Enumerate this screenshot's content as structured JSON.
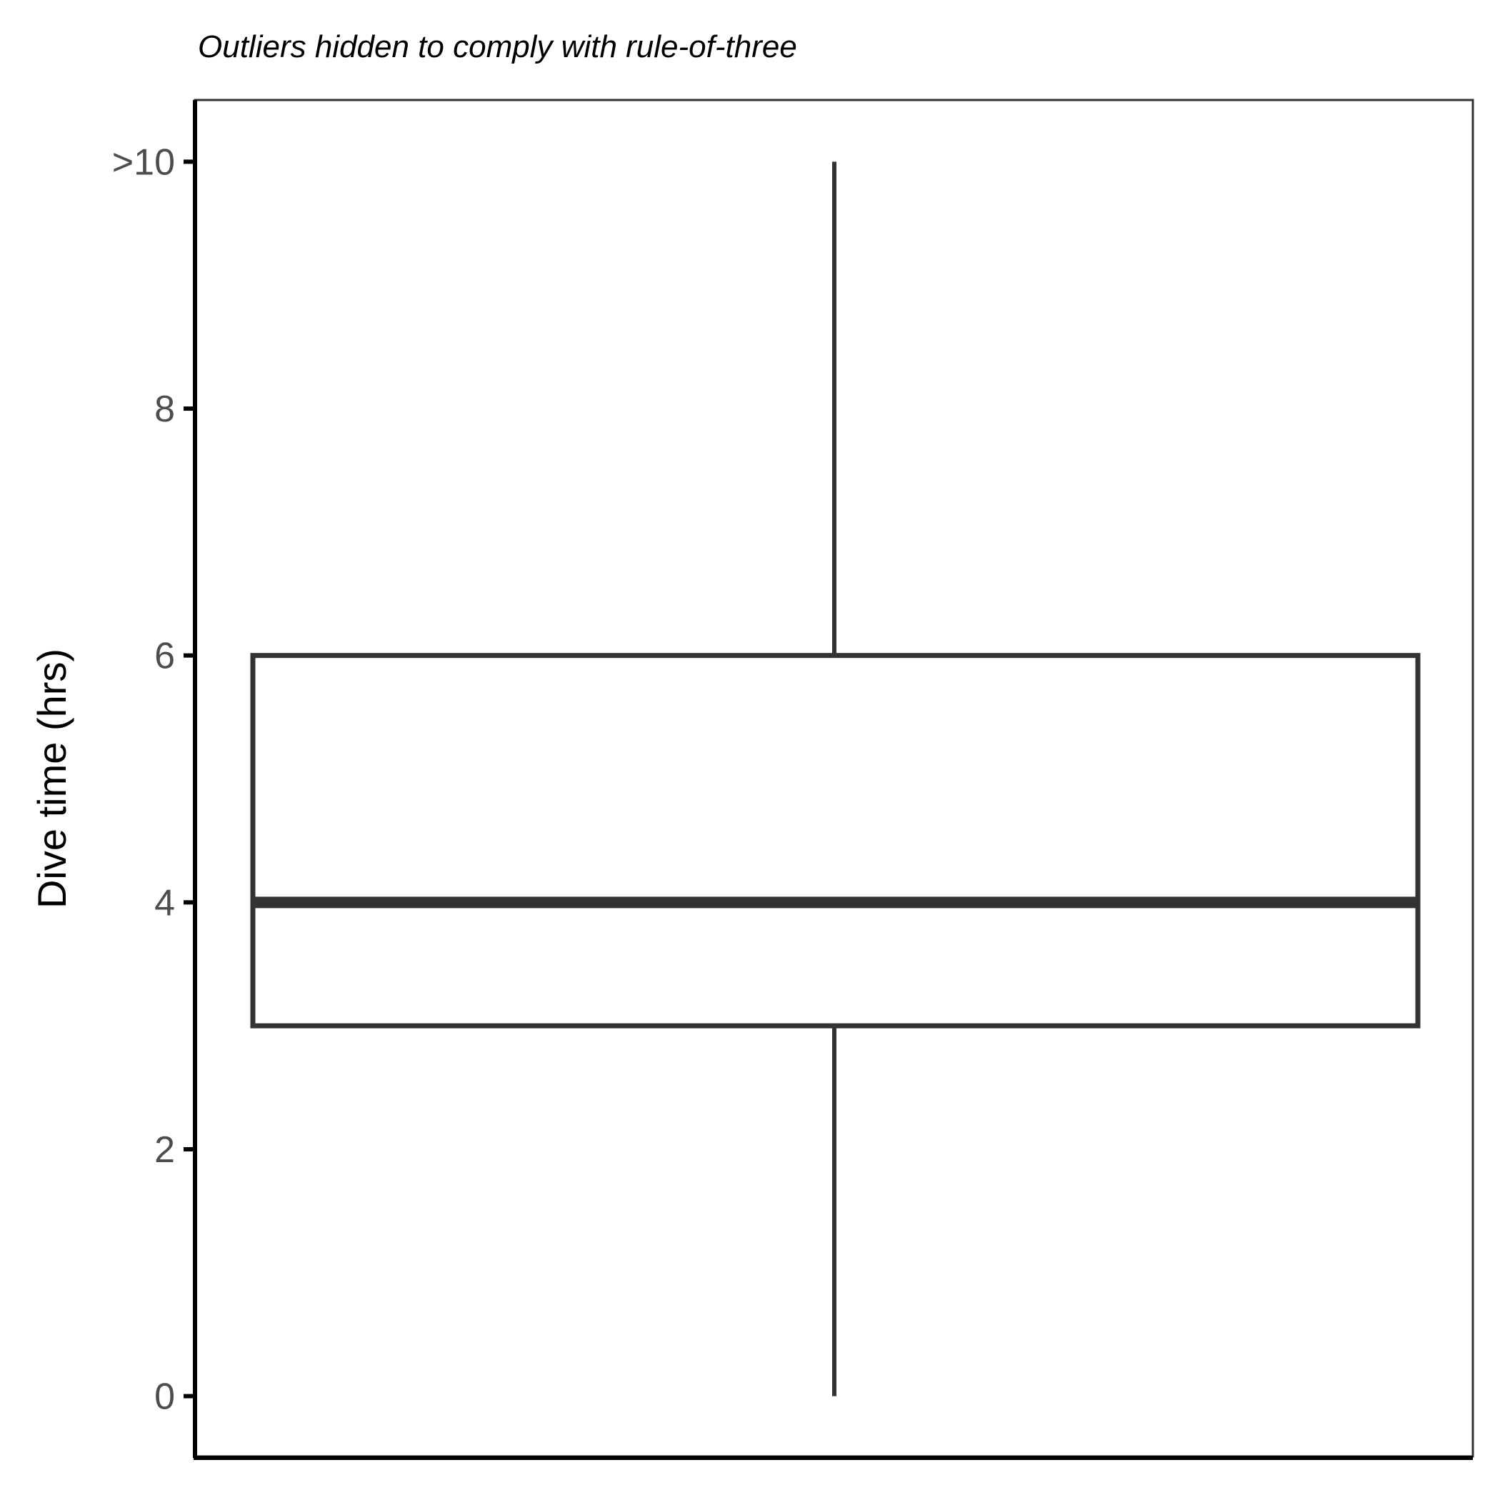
{
  "chart_data": {
    "type": "box",
    "subtitle": "Outliers hidden to comply with rule-of-three",
    "xlabel": "",
    "ylabel": "Dive time (hrs)",
    "ylim": [
      -0.5,
      10.5
    ],
    "y_ticks": [
      {
        "value": 0,
        "label": "0"
      },
      {
        "value": 2,
        "label": "2"
      },
      {
        "value": 4,
        "label": "4"
      },
      {
        "value": 6,
        "label": "6"
      },
      {
        "value": 8,
        "label": "8"
      },
      {
        "value": 10,
        "label": ">10"
      }
    ],
    "box": {
      "whisker_low": 0,
      "q1": 3,
      "median": 4,
      "q3": 6,
      "whisker_high": 10
    },
    "grid": false,
    "colors": {
      "box_line": "#333333",
      "axis": "#000000",
      "tick_label": "#4d4d4d"
    }
  }
}
